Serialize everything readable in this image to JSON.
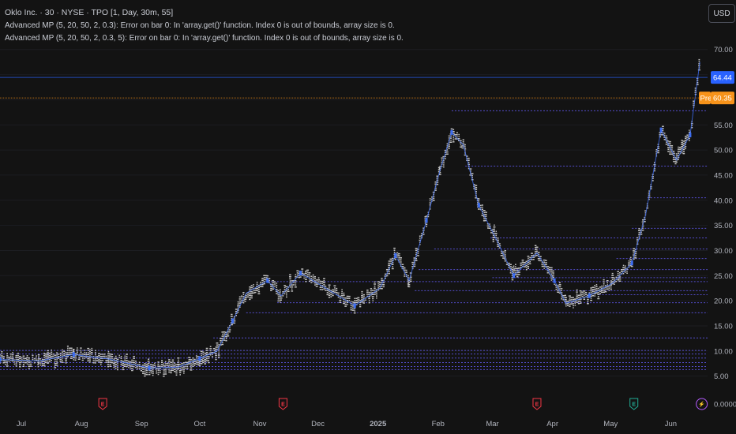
{
  "header": {
    "title": "Oklo Inc. · 30 · NYSE · TPO [1, Day, 30m, 55]",
    "error_line_1": "Advanced MP (5, 20, 50, 2, 0.3): Error on bar 0: In 'array.get()' function. Index 0 is out of bounds, array size is 0.",
    "error_line_2": "Advanced MP (5, 20, 50, 2, 0.3, 5): Error on bar 0: In 'array.get()' function. Index 0 is out of bounds, array size is 0."
  },
  "currency_button": "USD",
  "colors": {
    "background": "#131313",
    "price_line": "#2962ff",
    "pre_line": "#f7931a",
    "level_line": "#5b53e0",
    "tpo_letters": "#d9d9d9",
    "poc": "#3d6df2",
    "earnings_red": "#f23645",
    "earnings_green": "#22ab94",
    "dividend_purple": "#b55cff"
  },
  "chart_data": {
    "type": "tpo_profile",
    "title": "",
    "ylim": [
      4.0,
      72.0
    ],
    "yaxis_ticks": [
      "70.00",
      "65.00",
      "60.00",
      "55.00",
      "50.00",
      "45.00",
      "40.00",
      "35.00",
      "30.00",
      "25.00",
      "20.00",
      "15.00",
      "10.00",
      "5.00",
      "0.0000"
    ],
    "xaxis_ticks": [
      "Jul",
      "Aug",
      "Sep",
      "Oct",
      "Nov",
      "Dec",
      "2025",
      "Feb",
      "Mar",
      "Apr",
      "May",
      "Jun"
    ],
    "last_price": {
      "label": "64.44",
      "value": 64.44
    },
    "pre_market": {
      "tag": "Pre",
      "label": "60.35",
      "value": 60.35
    },
    "price_path": [
      {
        "date": "2024-06-20",
        "price": 8.3
      },
      {
        "date": "2024-07-10",
        "price": 8.0
      },
      {
        "date": "2024-07-28",
        "price": 9.3
      },
      {
        "date": "2024-08-15",
        "price": 8.4
      },
      {
        "date": "2024-09-05",
        "price": 6.6
      },
      {
        "date": "2024-09-20",
        "price": 6.8
      },
      {
        "date": "2024-10-01",
        "price": 8.5
      },
      {
        "date": "2024-10-10",
        "price": 10.0
      },
      {
        "date": "2024-10-18",
        "price": 16.0
      },
      {
        "date": "2024-10-25",
        "price": 21.5
      },
      {
        "date": "2024-11-05",
        "price": 24.0
      },
      {
        "date": "2024-11-12",
        "price": 21.0
      },
      {
        "date": "2024-11-22",
        "price": 25.5
      },
      {
        "date": "2024-12-05",
        "price": 22.5
      },
      {
        "date": "2024-12-20",
        "price": 19.0
      },
      {
        "date": "2025-01-02",
        "price": 22.5
      },
      {
        "date": "2025-01-10",
        "price": 29.0
      },
      {
        "date": "2025-01-17",
        "price": 24.0
      },
      {
        "date": "2025-01-26",
        "price": 36.0
      },
      {
        "date": "2025-02-02",
        "price": 46.0
      },
      {
        "date": "2025-02-08",
        "price": 53.5
      },
      {
        "date": "2025-02-14",
        "price": 51.0
      },
      {
        "date": "2025-02-22",
        "price": 39.0
      },
      {
        "date": "2025-03-02",
        "price": 33.0
      },
      {
        "date": "2025-03-12",
        "price": 25.0
      },
      {
        "date": "2025-03-24",
        "price": 29.5
      },
      {
        "date": "2025-04-02",
        "price": 24.0
      },
      {
        "date": "2025-04-08",
        "price": 19.5
      },
      {
        "date": "2025-04-20",
        "price": 21.0
      },
      {
        "date": "2025-05-02",
        "price": 23.5
      },
      {
        "date": "2025-05-12",
        "price": 27.5
      },
      {
        "date": "2025-05-19",
        "price": 37.0
      },
      {
        "date": "2025-05-27",
        "price": 54.0
      },
      {
        "date": "2025-06-04",
        "price": 48.0
      },
      {
        "date": "2025-06-11",
        "price": 53.0
      },
      {
        "date": "2025-06-16",
        "price": 67.5
      }
    ],
    "levels": [
      {
        "price": 57.8,
        "from": "2025-02-08"
      },
      {
        "price": 46.8,
        "from": "2025-02-15"
      },
      {
        "price": 40.5,
        "from": "2025-05-20"
      },
      {
        "price": 34.4,
        "from": "2025-05-12"
      },
      {
        "price": 32.5,
        "from": "2025-02-28"
      },
      {
        "price": 30.3,
        "from": "2025-01-30"
      },
      {
        "price": 28.4,
        "from": "2025-05-04"
      },
      {
        "price": 26.2,
        "from": "2025-01-22"
      },
      {
        "price": 24.6,
        "from": "2025-03-01"
      },
      {
        "price": 23.8,
        "from": "2024-11-05"
      },
      {
        "price": 22.0,
        "from": "2025-01-20"
      },
      {
        "price": 21.2,
        "from": "2025-04-25"
      },
      {
        "price": 19.6,
        "from": "2024-11-10"
      },
      {
        "price": 17.6,
        "from": "2024-10-25"
      },
      {
        "price": 12.6,
        "from": "2024-10-08"
      },
      {
        "price": 10.1,
        "from": "2024-06-20"
      },
      {
        "price": 9.4,
        "from": "2024-06-20"
      },
      {
        "price": 8.6,
        "from": "2024-06-20"
      },
      {
        "price": 7.7,
        "from": "2024-06-20"
      },
      {
        "price": 6.9,
        "from": "2024-06-20"
      },
      {
        "price": 6.3,
        "from": "2024-06-20"
      }
    ],
    "events": [
      {
        "date": "2024-08-12",
        "type": "earnings",
        "glyph": "E",
        "color": "#f23645"
      },
      {
        "date": "2024-11-13",
        "type": "earnings",
        "glyph": "E",
        "color": "#f23645"
      },
      {
        "date": "2025-03-24",
        "type": "earnings",
        "glyph": "E",
        "color": "#f23645"
      },
      {
        "date": "2025-05-13",
        "type": "earnings",
        "glyph": "E",
        "color": "#22ab94"
      },
      {
        "date": "2025-06-17",
        "type": "dividend",
        "glyph": "⚡",
        "color": "#b55cff"
      }
    ]
  }
}
